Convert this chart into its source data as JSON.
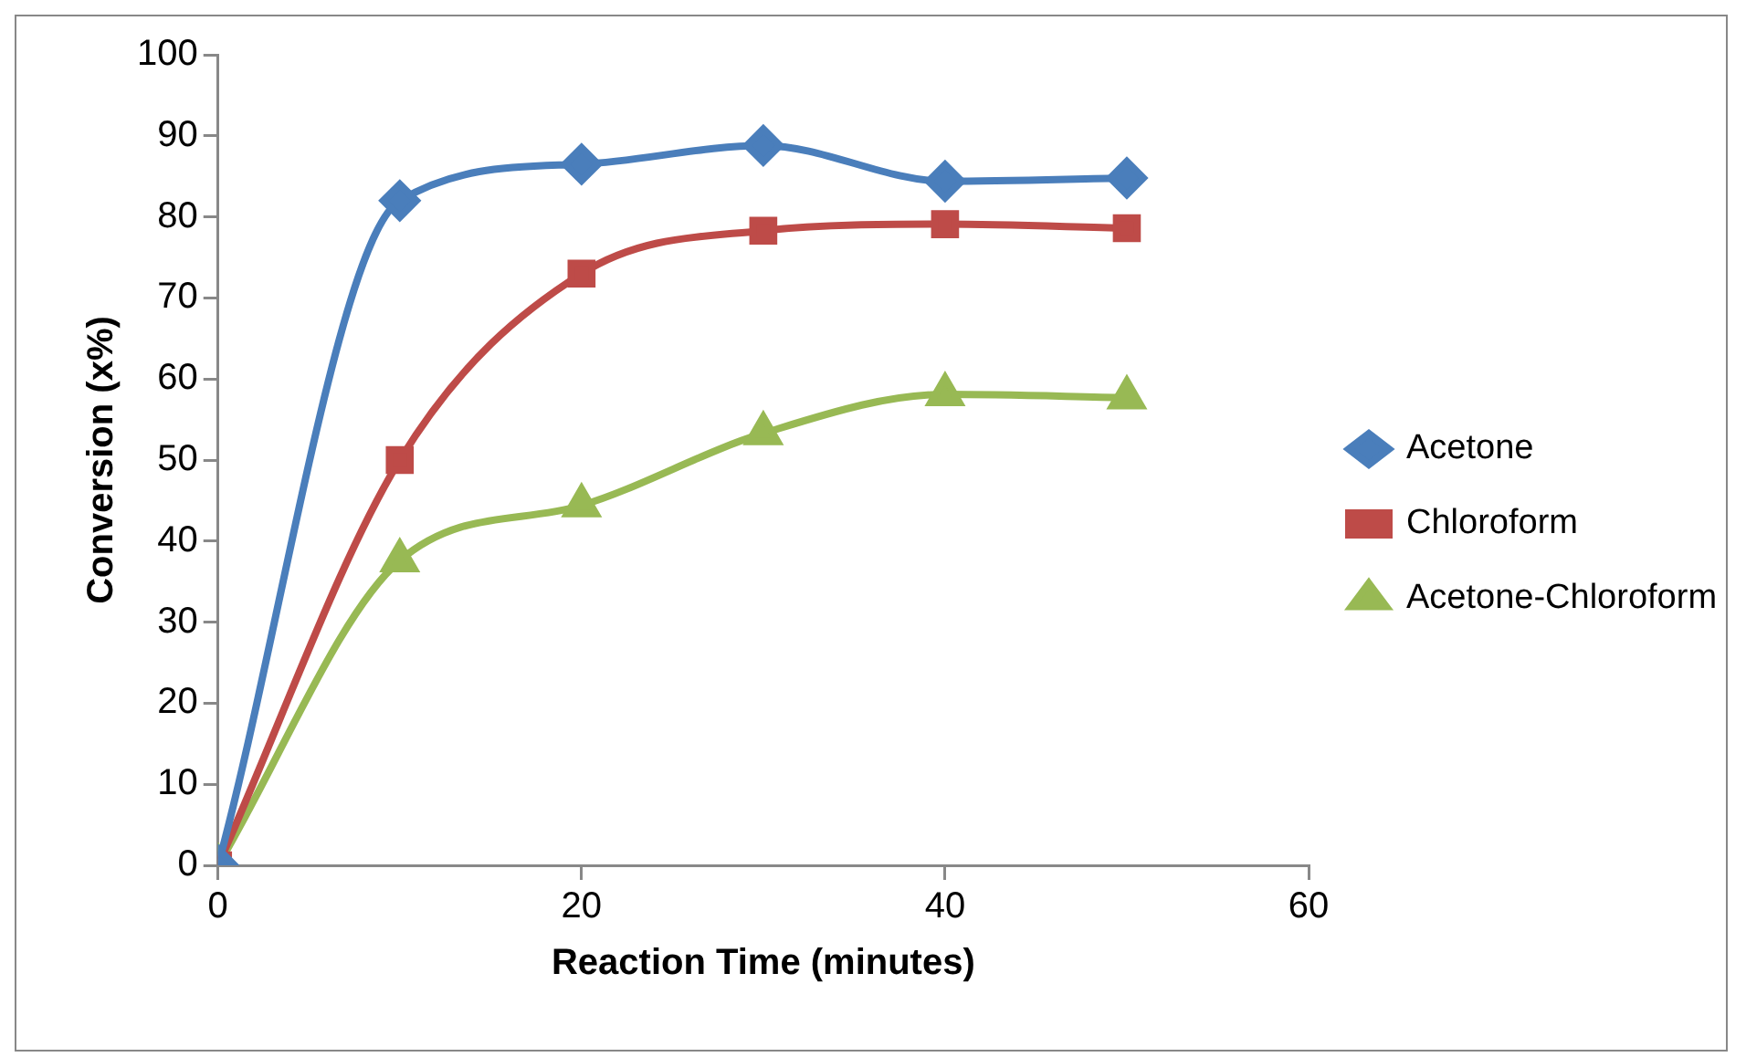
{
  "chart_data": {
    "type": "line",
    "xlabel": "Reaction Time (minutes)",
    "ylabel": "Conversion (x%)",
    "x": [
      0,
      10,
      20,
      30,
      40,
      50
    ],
    "xlim": [
      0,
      60
    ],
    "xticks": [
      0,
      20,
      40,
      60
    ],
    "ylim": [
      0,
      100
    ],
    "yticks": [
      0,
      10,
      20,
      30,
      40,
      50,
      60,
      70,
      80,
      90,
      100
    ],
    "grid": false,
    "legend": "right",
    "series": [
      {
        "name": "Acetone",
        "color": "#4a7ebb",
        "marker": "diamond",
        "values": [
          0,
          82.0,
          86.5,
          88.8,
          84.4,
          84.8
        ]
      },
      {
        "name": "Chloroform",
        "color": "#be4b48",
        "marker": "square",
        "values": [
          0,
          50.0,
          73.0,
          78.3,
          79.1,
          78.6
        ]
      },
      {
        "name": "Acetone-Chloroform",
        "color": "#98b954",
        "marker": "triangle",
        "values": [
          0,
          37.6,
          44.4,
          53.3,
          58.1,
          57.7
        ]
      }
    ]
  }
}
